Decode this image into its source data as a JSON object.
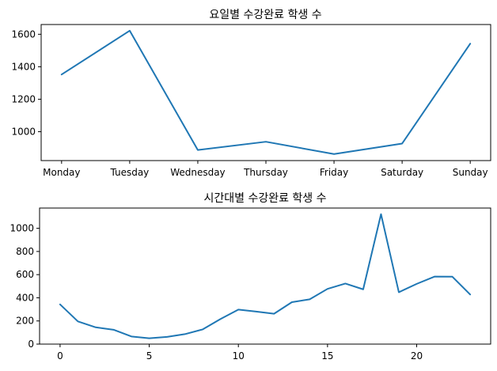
{
  "chart_data": [
    {
      "type": "line",
      "title": "요일별 수강완료 학생 수",
      "xlabel": "",
      "ylabel": "",
      "categories": [
        "Monday",
        "Tuesday",
        "Wednesday",
        "Thursday",
        "Friday",
        "Saturday",
        "Sunday"
      ],
      "values": [
        1352,
        1622,
        887,
        938,
        862,
        927,
        1542
      ],
      "ylim": [
        822,
        1660
      ],
      "yticks": [
        1000,
        1200,
        1400,
        1600
      ],
      "grid": false,
      "color": "#1f77b4"
    },
    {
      "type": "line",
      "title": "시간대별 수강완료 학생 수",
      "xlabel": "",
      "ylabel": "",
      "x": [
        0,
        1,
        2,
        3,
        4,
        5,
        6,
        7,
        8,
        9,
        10,
        11,
        12,
        13,
        14,
        15,
        16,
        17,
        18,
        19,
        20,
        21,
        22,
        23
      ],
      "values": [
        343,
        196,
        145,
        124,
        66,
        50,
        62,
        86,
        127,
        217,
        298,
        281,
        262,
        362,
        387,
        477,
        523,
        473,
        1122,
        448,
        520,
        583,
        582,
        428
      ],
      "xlim": [
        -1.15,
        24.15
      ],
      "ylim": [
        0,
        1175
      ],
      "xticks": [
        0,
        5,
        10,
        15,
        20
      ],
      "yticks": [
        0,
        200,
        400,
        600,
        800,
        1000
      ],
      "grid": false,
      "color": "#1f77b4"
    }
  ]
}
